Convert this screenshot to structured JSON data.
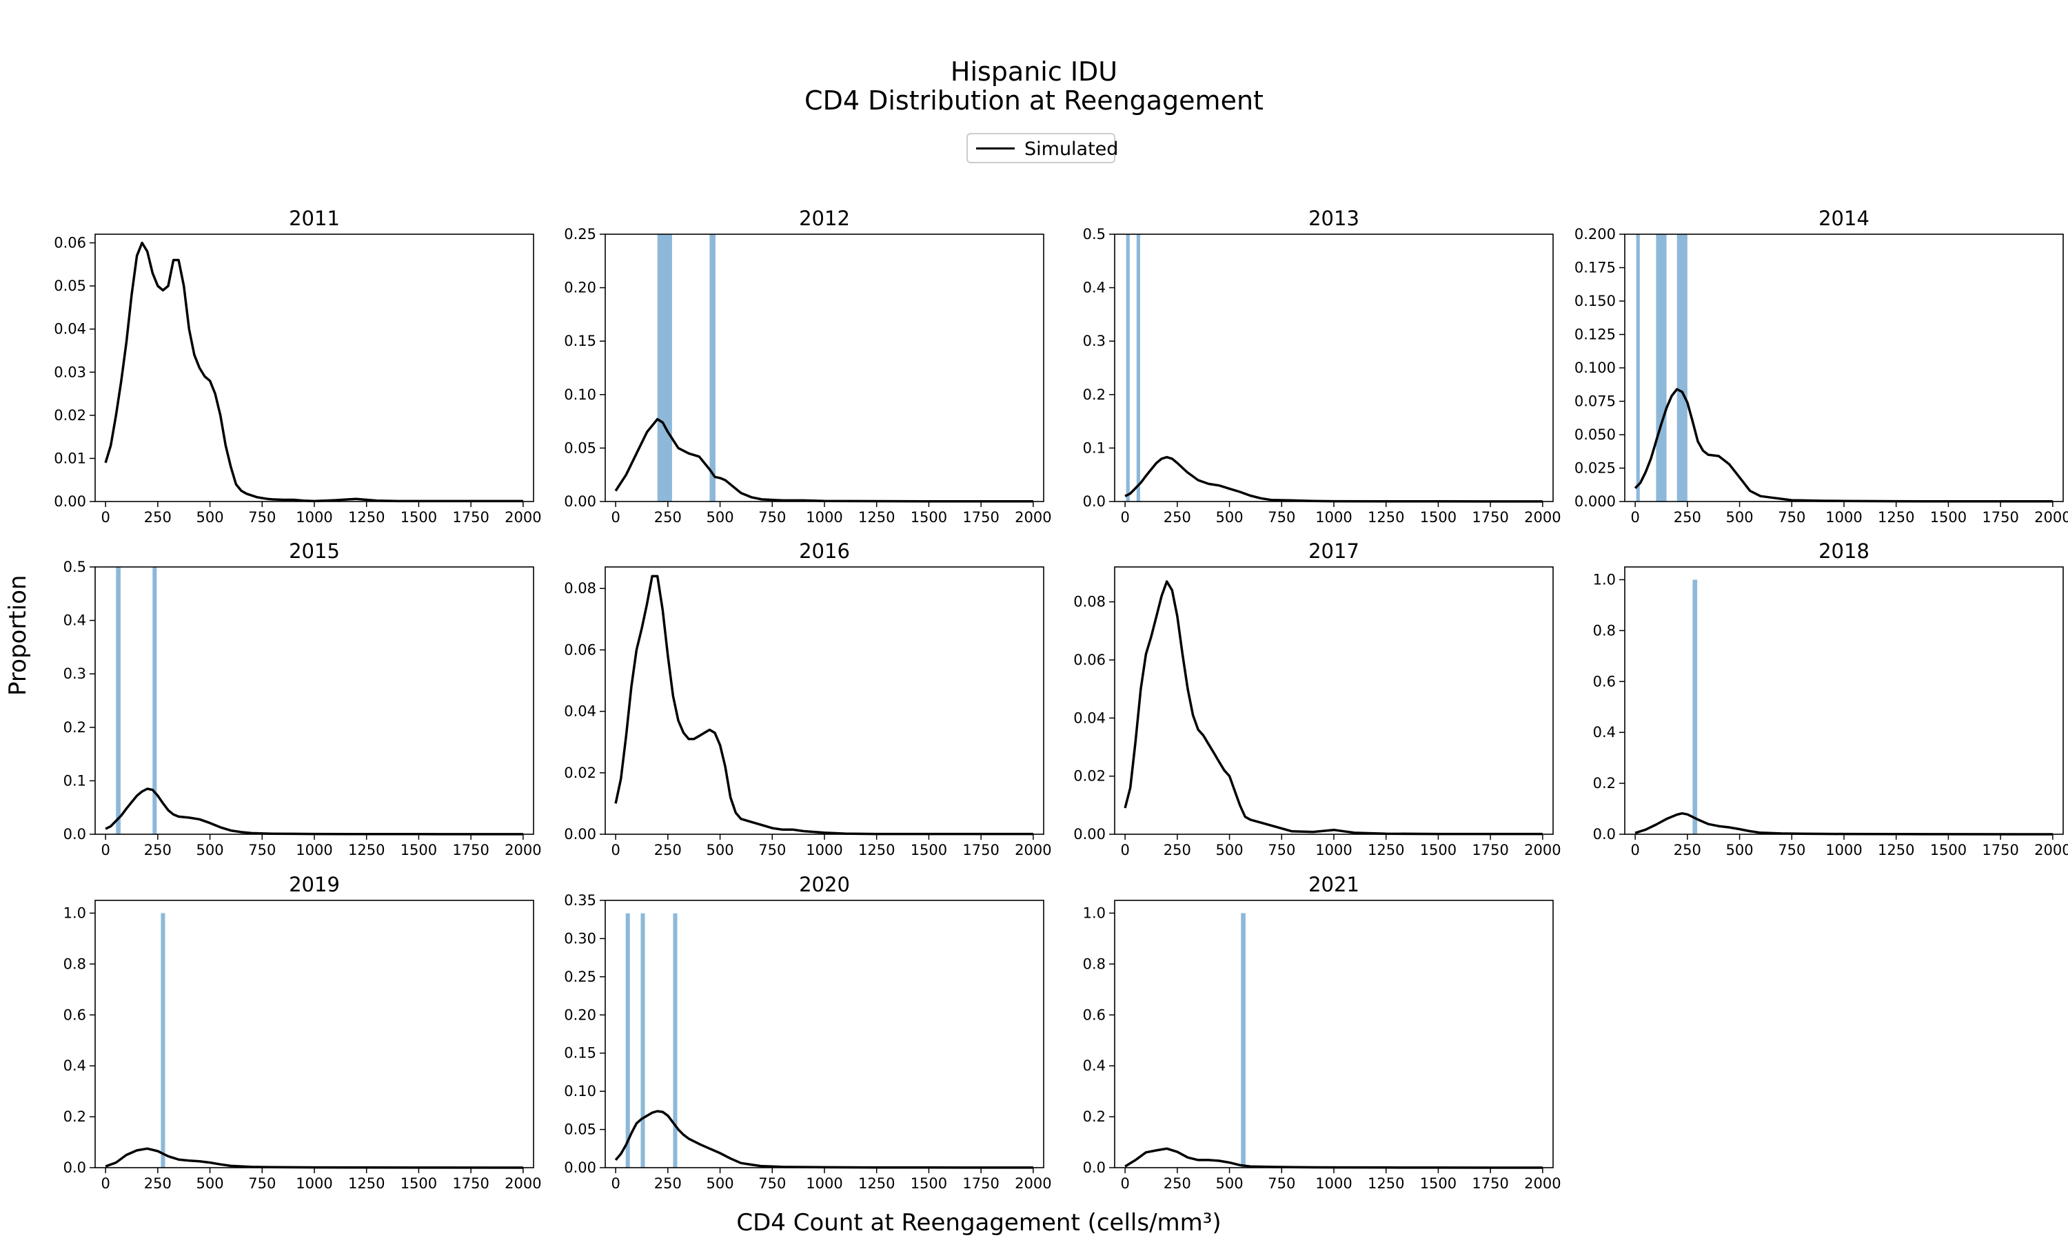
{
  "title_line1": "Hispanic IDU",
  "title_line2": "CD4 Distribution at Reengagement",
  "legend_label": "Simulated",
  "xlabel": "CD4 Count at Reengagement (cells/mm³)",
  "ylabel": "Proportion",
  "chart_data": [
    {
      "type": "line",
      "title": "2011",
      "ylim": [
        0,
        0.062
      ],
      "yticks": [
        0,
        0.01,
        0.02,
        0.03,
        0.04,
        0.05,
        0.06
      ],
      "ytick_labels": [
        "0.00",
        "0.01",
        "0.02",
        "0.03",
        "0.04",
        "0.05",
        "0.06"
      ],
      "bars": [],
      "x": [
        0,
        25,
        50,
        75,
        100,
        125,
        150,
        175,
        200,
        225,
        250,
        275,
        300,
        325,
        350,
        375,
        400,
        425,
        450,
        475,
        500,
        525,
        550,
        575,
        600,
        625,
        650,
        675,
        700,
        725,
        750,
        775,
        800,
        850,
        900,
        950,
        1000,
        1100,
        1200,
        1250,
        1300,
        1400,
        1500,
        1750,
        2000
      ],
      "y": [
        0.009,
        0.013,
        0.02,
        0.028,
        0.037,
        0.048,
        0.057,
        0.06,
        0.058,
        0.053,
        0.05,
        0.049,
        0.05,
        0.056,
        0.056,
        0.05,
        0.04,
        0.034,
        0.031,
        0.029,
        0.028,
        0.025,
        0.02,
        0.013,
        0.008,
        0.004,
        0.0025,
        0.0018,
        0.0014,
        0.001,
        0.0008,
        0.0006,
        0.0005,
        0.0004,
        0.0004,
        0.0002,
        0.0001,
        0.0003,
        0.0006,
        0.0004,
        0.0002,
        0.0001,
        0.0001,
        0.0001,
        0.0001
      ]
    },
    {
      "type": "line",
      "title": "2012",
      "ylim": [
        0,
        0.25
      ],
      "yticks": [
        0,
        0.05,
        0.1,
        0.15,
        0.2,
        0.25
      ],
      "ytick_labels": [
        "0.00",
        "0.05",
        "0.10",
        "0.15",
        "0.20",
        "0.25"
      ],
      "bars": [
        {
          "x0": 200,
          "x1": 270,
          "value": 0.25
        },
        {
          "x0": 450,
          "x1": 478,
          "value": 0.25
        }
      ],
      "x": [
        0,
        50,
        100,
        150,
        200,
        225,
        250,
        300,
        350,
        400,
        450,
        475,
        500,
        525,
        550,
        600,
        650,
        700,
        800,
        900,
        1000,
        1250,
        1500,
        2000
      ],
      "y": [
        0.01,
        0.025,
        0.045,
        0.065,
        0.077,
        0.074,
        0.065,
        0.05,
        0.045,
        0.042,
        0.03,
        0.023,
        0.022,
        0.02,
        0.016,
        0.008,
        0.004,
        0.002,
        0.001,
        0.001,
        0.0005,
        0.0003,
        0.0002,
        0.0001
      ]
    },
    {
      "type": "line",
      "title": "2013",
      "ylim": [
        0,
        0.5
      ],
      "yticks": [
        0,
        0.1,
        0.2,
        0.3,
        0.4,
        0.5
      ],
      "ytick_labels": [
        "0.0",
        "0.1",
        "0.2",
        "0.3",
        "0.4",
        "0.5"
      ],
      "bars": [
        {
          "x0": 5,
          "x1": 22,
          "value": 0.5
        },
        {
          "x0": 55,
          "x1": 72,
          "value": 0.5
        }
      ],
      "x": [
        0,
        25,
        50,
        75,
        100,
        125,
        150,
        175,
        200,
        225,
        250,
        275,
        300,
        325,
        350,
        400,
        450,
        500,
        550,
        600,
        650,
        700,
        800,
        900,
        1000,
        1250,
        1500,
        2000
      ],
      "y": [
        0.01,
        0.015,
        0.025,
        0.035,
        0.048,
        0.06,
        0.072,
        0.08,
        0.083,
        0.08,
        0.072,
        0.063,
        0.054,
        0.047,
        0.04,
        0.033,
        0.03,
        0.024,
        0.018,
        0.011,
        0.006,
        0.003,
        0.002,
        0.001,
        0.0005,
        0.0003,
        0.0002,
        0.0001
      ]
    },
    {
      "type": "line",
      "title": "2014",
      "ylim": [
        0,
        0.2
      ],
      "yticks": [
        0,
        0.025,
        0.05,
        0.075,
        0.1,
        0.125,
        0.15,
        0.175,
        0.2
      ],
      "ytick_labels": [
        "0.000",
        "0.025",
        "0.050",
        "0.075",
        "0.100",
        "0.125",
        "0.150",
        "0.175",
        "0.200"
      ],
      "bars": [
        {
          "x0": 5,
          "x1": 22,
          "value": 0.2
        },
        {
          "x0": 100,
          "x1": 150,
          "value": 0.2
        },
        {
          "x0": 200,
          "x1": 250,
          "value": 0.2
        }
      ],
      "x": [
        0,
        25,
        50,
        75,
        100,
        125,
        150,
        175,
        200,
        225,
        250,
        275,
        300,
        325,
        350,
        400,
        450,
        500,
        550,
        600,
        650,
        700,
        750,
        800,
        900,
        1000,
        1250,
        1500,
        2000
      ],
      "y": [
        0.01,
        0.014,
        0.022,
        0.032,
        0.045,
        0.058,
        0.07,
        0.079,
        0.084,
        0.082,
        0.074,
        0.06,
        0.045,
        0.038,
        0.035,
        0.034,
        0.028,
        0.018,
        0.008,
        0.004,
        0.003,
        0.002,
        0.001,
        0.0008,
        0.0005,
        0.0004,
        0.0002,
        0.0001,
        0.0001
      ]
    },
    {
      "type": "line",
      "title": "2015",
      "ylim": [
        0,
        0.5
      ],
      "yticks": [
        0,
        0.1,
        0.2,
        0.3,
        0.4,
        0.5
      ],
      "ytick_labels": [
        "0.0",
        "0.1",
        "0.2",
        "0.3",
        "0.4",
        "0.5"
      ],
      "bars": [
        {
          "x0": 50,
          "x1": 72,
          "value": 0.5
        },
        {
          "x0": 225,
          "x1": 245,
          "value": 0.5
        }
      ],
      "x": [
        0,
        25,
        50,
        75,
        100,
        125,
        150,
        175,
        200,
        225,
        250,
        275,
        300,
        325,
        350,
        400,
        450,
        500,
        550,
        600,
        650,
        700,
        800,
        900,
        1000,
        1250,
        1500,
        2000
      ],
      "y": [
        0.01,
        0.015,
        0.025,
        0.035,
        0.048,
        0.06,
        0.072,
        0.08,
        0.085,
        0.083,
        0.072,
        0.058,
        0.045,
        0.037,
        0.033,
        0.031,
        0.028,
        0.021,
        0.013,
        0.007,
        0.004,
        0.002,
        0.001,
        0.0008,
        0.0005,
        0.0003,
        0.0002,
        0.0001
      ]
    },
    {
      "type": "line",
      "title": "2016",
      "ylim": [
        0,
        0.087
      ],
      "yticks": [
        0,
        0.02,
        0.04,
        0.06,
        0.08
      ],
      "ytick_labels": [
        "0.00",
        "0.02",
        "0.04",
        "0.06",
        "0.08"
      ],
      "bars": [],
      "x": [
        0,
        25,
        50,
        75,
        100,
        125,
        150,
        175,
        200,
        225,
        250,
        275,
        300,
        325,
        350,
        375,
        400,
        425,
        450,
        475,
        500,
        525,
        550,
        575,
        600,
        650,
        700,
        750,
        800,
        850,
        900,
        1000,
        1100,
        1250,
        1500,
        2000
      ],
      "y": [
        0.01,
        0.018,
        0.032,
        0.048,
        0.06,
        0.067,
        0.075,
        0.084,
        0.084,
        0.073,
        0.058,
        0.045,
        0.037,
        0.033,
        0.031,
        0.031,
        0.032,
        0.033,
        0.034,
        0.033,
        0.029,
        0.022,
        0.012,
        0.007,
        0.005,
        0.004,
        0.003,
        0.002,
        0.0015,
        0.0015,
        0.001,
        0.0005,
        0.0002,
        0.0001,
        0.0001,
        0.0001
      ]
    },
    {
      "type": "line",
      "title": "2017",
      "ylim": [
        0,
        0.092
      ],
      "yticks": [
        0,
        0.02,
        0.04,
        0.06,
        0.08
      ],
      "ytick_labels": [
        "0.00",
        "0.02",
        "0.04",
        "0.06",
        "0.08"
      ],
      "bars": [],
      "x": [
        0,
        25,
        50,
        75,
        100,
        125,
        150,
        175,
        200,
        225,
        250,
        275,
        300,
        325,
        350,
        375,
        400,
        425,
        450,
        475,
        500,
        525,
        550,
        575,
        600,
        650,
        700,
        750,
        800,
        900,
        1000,
        1050,
        1100,
        1250,
        1500,
        2000
      ],
      "y": [
        0.009,
        0.016,
        0.032,
        0.05,
        0.062,
        0.068,
        0.075,
        0.082,
        0.087,
        0.084,
        0.075,
        0.062,
        0.05,
        0.041,
        0.036,
        0.034,
        0.031,
        0.028,
        0.025,
        0.022,
        0.02,
        0.015,
        0.01,
        0.006,
        0.005,
        0.004,
        0.003,
        0.002,
        0.001,
        0.0008,
        0.0015,
        0.001,
        0.0005,
        0.0002,
        0.0001,
        0.0001
      ]
    },
    {
      "type": "line",
      "title": "2018",
      "ylim": [
        0,
        1.05
      ],
      "yticks": [
        0,
        0.2,
        0.4,
        0.6,
        0.8,
        1.0
      ],
      "ytick_labels": [
        "0.0",
        "0.2",
        "0.4",
        "0.6",
        "0.8",
        "1.0"
      ],
      "bars": [
        {
          "x0": 275,
          "x1": 297,
          "value": 1.0
        }
      ],
      "x": [
        0,
        50,
        100,
        150,
        200,
        225,
        250,
        300,
        350,
        400,
        450,
        500,
        550,
        600,
        700,
        800,
        1000,
        1250,
        1500,
        2000
      ],
      "y": [
        0.005,
        0.018,
        0.038,
        0.06,
        0.077,
        0.082,
        0.078,
        0.058,
        0.04,
        0.032,
        0.027,
        0.02,
        0.012,
        0.006,
        0.003,
        0.002,
        0.001,
        0.0005,
        0.0002,
        0.0001
      ]
    },
    {
      "type": "line",
      "title": "2019",
      "ylim": [
        0,
        1.05
      ],
      "yticks": [
        0,
        0.2,
        0.4,
        0.6,
        0.8,
        1.0
      ],
      "ytick_labels": [
        "0.0",
        "0.2",
        "0.4",
        "0.6",
        "0.8",
        "1.0"
      ],
      "bars": [
        {
          "x0": 265,
          "x1": 285,
          "value": 1.0
        }
      ],
      "x": [
        0,
        50,
        100,
        150,
        200,
        250,
        300,
        350,
        400,
        450,
        500,
        550,
        600,
        700,
        800,
        1000,
        1250,
        1500,
        2000
      ],
      "y": [
        0.005,
        0.02,
        0.05,
        0.068,
        0.075,
        0.065,
        0.045,
        0.032,
        0.028,
        0.025,
        0.02,
        0.013,
        0.007,
        0.003,
        0.002,
        0.001,
        0.0005,
        0.0002,
        0.0001
      ]
    },
    {
      "type": "line",
      "title": "2020",
      "ylim": [
        0,
        0.35
      ],
      "yticks": [
        0,
        0.05,
        0.1,
        0.15,
        0.2,
        0.25,
        0.3,
        0.35
      ],
      "ytick_labels": [
        "0.00",
        "0.05",
        "0.10",
        "0.15",
        "0.20",
        "0.25",
        "0.30",
        "0.35"
      ],
      "bars": [
        {
          "x0": 48,
          "x1": 68,
          "value": 0.333
        },
        {
          "x0": 120,
          "x1": 140,
          "value": 0.333
        },
        {
          "x0": 275,
          "x1": 295,
          "value": 0.333
        }
      ],
      "x": [
        0,
        25,
        50,
        75,
        100,
        125,
        150,
        175,
        200,
        225,
        250,
        275,
        300,
        325,
        350,
        400,
        450,
        500,
        550,
        600,
        650,
        700,
        750,
        800,
        900,
        1000,
        1250,
        1500,
        2000
      ],
      "y": [
        0.01,
        0.018,
        0.03,
        0.045,
        0.058,
        0.064,
        0.068,
        0.072,
        0.074,
        0.073,
        0.068,
        0.059,
        0.05,
        0.043,
        0.038,
        0.031,
        0.025,
        0.019,
        0.012,
        0.006,
        0.004,
        0.002,
        0.0015,
        0.001,
        0.0008,
        0.0005,
        0.0003,
        0.0002,
        0.0001
      ]
    },
    {
      "type": "line",
      "title": "2021",
      "ylim": [
        0,
        1.05
      ],
      "yticks": [
        0,
        0.2,
        0.4,
        0.6,
        0.8,
        1.0
      ],
      "ytick_labels": [
        "0.0",
        "0.2",
        "0.4",
        "0.6",
        "0.8",
        "1.0"
      ],
      "bars": [
        {
          "x0": 555,
          "x1": 577,
          "value": 1.0
        }
      ],
      "x": [
        0,
        50,
        100,
        150,
        200,
        250,
        300,
        350,
        400,
        450,
        500,
        550,
        600,
        700,
        800,
        1000,
        1250,
        1500,
        2000
      ],
      "y": [
        0.005,
        0.03,
        0.06,
        0.068,
        0.075,
        0.062,
        0.04,
        0.03,
        0.03,
        0.027,
        0.02,
        0.01,
        0.005,
        0.003,
        0.002,
        0.001,
        0.0005,
        0.0002,
        0.0001
      ]
    }
  ]
}
